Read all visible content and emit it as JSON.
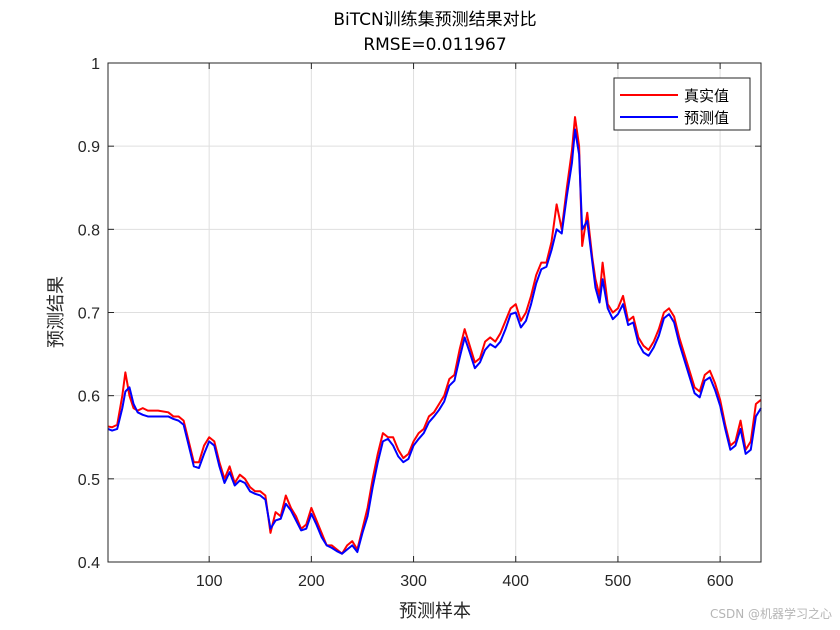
{
  "chart_data": {
    "type": "line",
    "title": "BiTCN训练集预测结果对比",
    "subtitle": "RMSE=0.011967",
    "xlabel": "预测样本",
    "ylabel": "预测结果",
    "xlim": [
      1,
      640
    ],
    "ylim": [
      0.4,
      1.0
    ],
    "xticks": [
      100,
      200,
      300,
      400,
      500,
      600
    ],
    "yticks": [
      0.4,
      0.5,
      0.6,
      0.7,
      0.8,
      0.9,
      1.0
    ],
    "xtick_labels": [
      "100",
      "200",
      "300",
      "400",
      "500",
      "600"
    ],
    "ytick_labels": [
      "0.4",
      "0.5",
      "0.6",
      "0.7",
      "0.8",
      "0.9",
      "1"
    ],
    "grid": true,
    "legend_position": "top-right",
    "series": [
      {
        "name": "真实值",
        "color": "#ff0000",
        "x": [
          1,
          5,
          10,
          15,
          18,
          22,
          26,
          30,
          35,
          40,
          50,
          60,
          65,
          70,
          75,
          80,
          85,
          90,
          95,
          100,
          105,
          110,
          115,
          120,
          125,
          130,
          135,
          140,
          145,
          150,
          155,
          160,
          165,
          170,
          175,
          180,
          185,
          190,
          195,
          200,
          205,
          210,
          215,
          220,
          225,
          230,
          235,
          240,
          245,
          250,
          255,
          260,
          265,
          270,
          275,
          280,
          285,
          290,
          295,
          300,
          305,
          310,
          315,
          320,
          325,
          330,
          335,
          340,
          345,
          350,
          355,
          360,
          365,
          370,
          375,
          380,
          385,
          390,
          395,
          400,
          405,
          410,
          415,
          420,
          425,
          430,
          435,
          440,
          445,
          450,
          455,
          458,
          462,
          465,
          470,
          475,
          478,
          482,
          485,
          490,
          495,
          500,
          505,
          510,
          515,
          520,
          525,
          530,
          535,
          540,
          545,
          550,
          555,
          560,
          565,
          570,
          575,
          580,
          585,
          590,
          595,
          600,
          605,
          610,
          615,
          620,
          625,
          630,
          635,
          640
        ],
        "y": [
          0.563,
          0.562,
          0.565,
          0.6,
          0.628,
          0.6,
          0.585,
          0.582,
          0.585,
          0.582,
          0.582,
          0.58,
          0.575,
          0.575,
          0.57,
          0.545,
          0.52,
          0.52,
          0.54,
          0.55,
          0.545,
          0.52,
          0.5,
          0.515,
          0.495,
          0.505,
          0.5,
          0.49,
          0.485,
          0.485,
          0.48,
          0.435,
          0.46,
          0.455,
          0.48,
          0.465,
          0.455,
          0.44,
          0.445,
          0.465,
          0.45,
          0.435,
          0.42,
          0.42,
          0.415,
          0.41,
          0.42,
          0.425,
          0.415,
          0.44,
          0.465,
          0.5,
          0.53,
          0.555,
          0.55,
          0.55,
          0.535,
          0.525,
          0.53,
          0.545,
          0.555,
          0.56,
          0.575,
          0.58,
          0.59,
          0.6,
          0.62,
          0.625,
          0.655,
          0.68,
          0.66,
          0.64,
          0.645,
          0.665,
          0.67,
          0.665,
          0.675,
          0.69,
          0.705,
          0.71,
          0.69,
          0.7,
          0.72,
          0.745,
          0.76,
          0.76,
          0.785,
          0.83,
          0.8,
          0.85,
          0.895,
          0.935,
          0.9,
          0.78,
          0.82,
          0.765,
          0.74,
          0.72,
          0.76,
          0.71,
          0.7,
          0.705,
          0.72,
          0.69,
          0.695,
          0.67,
          0.66,
          0.655,
          0.665,
          0.68,
          0.7,
          0.705,
          0.695,
          0.67,
          0.65,
          0.63,
          0.61,
          0.605,
          0.625,
          0.63,
          0.615,
          0.595,
          0.565,
          0.54,
          0.545,
          0.57,
          0.535,
          0.545,
          0.59,
          0.595
        ]
      },
      {
        "name": "预测值",
        "color": "#0000ff",
        "x": [
          1,
          5,
          10,
          15,
          18,
          22,
          26,
          30,
          35,
          40,
          50,
          60,
          65,
          70,
          75,
          80,
          85,
          90,
          95,
          100,
          105,
          110,
          115,
          120,
          125,
          130,
          135,
          140,
          145,
          150,
          155,
          160,
          165,
          170,
          175,
          180,
          185,
          190,
          195,
          200,
          205,
          210,
          215,
          220,
          225,
          230,
          235,
          240,
          245,
          250,
          255,
          260,
          265,
          270,
          275,
          280,
          285,
          290,
          295,
          300,
          305,
          310,
          315,
          320,
          325,
          330,
          335,
          340,
          345,
          350,
          355,
          360,
          365,
          370,
          375,
          380,
          385,
          390,
          395,
          400,
          405,
          410,
          415,
          420,
          425,
          430,
          435,
          440,
          445,
          450,
          455,
          458,
          462,
          465,
          470,
          475,
          478,
          482,
          485,
          490,
          495,
          500,
          505,
          510,
          515,
          520,
          525,
          530,
          535,
          540,
          545,
          550,
          555,
          560,
          565,
          570,
          575,
          580,
          585,
          590,
          595,
          600,
          605,
          610,
          615,
          620,
          625,
          630,
          635,
          640
        ],
        "y": [
          0.56,
          0.558,
          0.56,
          0.585,
          0.605,
          0.61,
          0.59,
          0.58,
          0.577,
          0.575,
          0.575,
          0.575,
          0.572,
          0.57,
          0.565,
          0.54,
          0.515,
          0.513,
          0.53,
          0.545,
          0.54,
          0.515,
          0.495,
          0.508,
          0.492,
          0.498,
          0.495,
          0.485,
          0.482,
          0.48,
          0.475,
          0.44,
          0.45,
          0.452,
          0.47,
          0.462,
          0.45,
          0.438,
          0.44,
          0.458,
          0.445,
          0.43,
          0.42,
          0.417,
          0.413,
          0.41,
          0.415,
          0.42,
          0.412,
          0.435,
          0.455,
          0.49,
          0.52,
          0.545,
          0.548,
          0.54,
          0.527,
          0.52,
          0.524,
          0.54,
          0.548,
          0.555,
          0.568,
          0.575,
          0.583,
          0.593,
          0.612,
          0.618,
          0.645,
          0.67,
          0.652,
          0.633,
          0.64,
          0.655,
          0.662,
          0.658,
          0.665,
          0.68,
          0.698,
          0.7,
          0.682,
          0.69,
          0.71,
          0.735,
          0.752,
          0.755,
          0.775,
          0.8,
          0.795,
          0.84,
          0.88,
          0.92,
          0.89,
          0.8,
          0.81,
          0.76,
          0.73,
          0.712,
          0.74,
          0.705,
          0.692,
          0.698,
          0.71,
          0.685,
          0.688,
          0.663,
          0.652,
          0.648,
          0.658,
          0.672,
          0.693,
          0.698,
          0.688,
          0.663,
          0.643,
          0.623,
          0.603,
          0.598,
          0.618,
          0.622,
          0.607,
          0.588,
          0.56,
          0.535,
          0.54,
          0.56,
          0.53,
          0.535,
          0.575,
          0.585
        ]
      }
    ]
  },
  "watermark": "CSDN @机器学习之心"
}
